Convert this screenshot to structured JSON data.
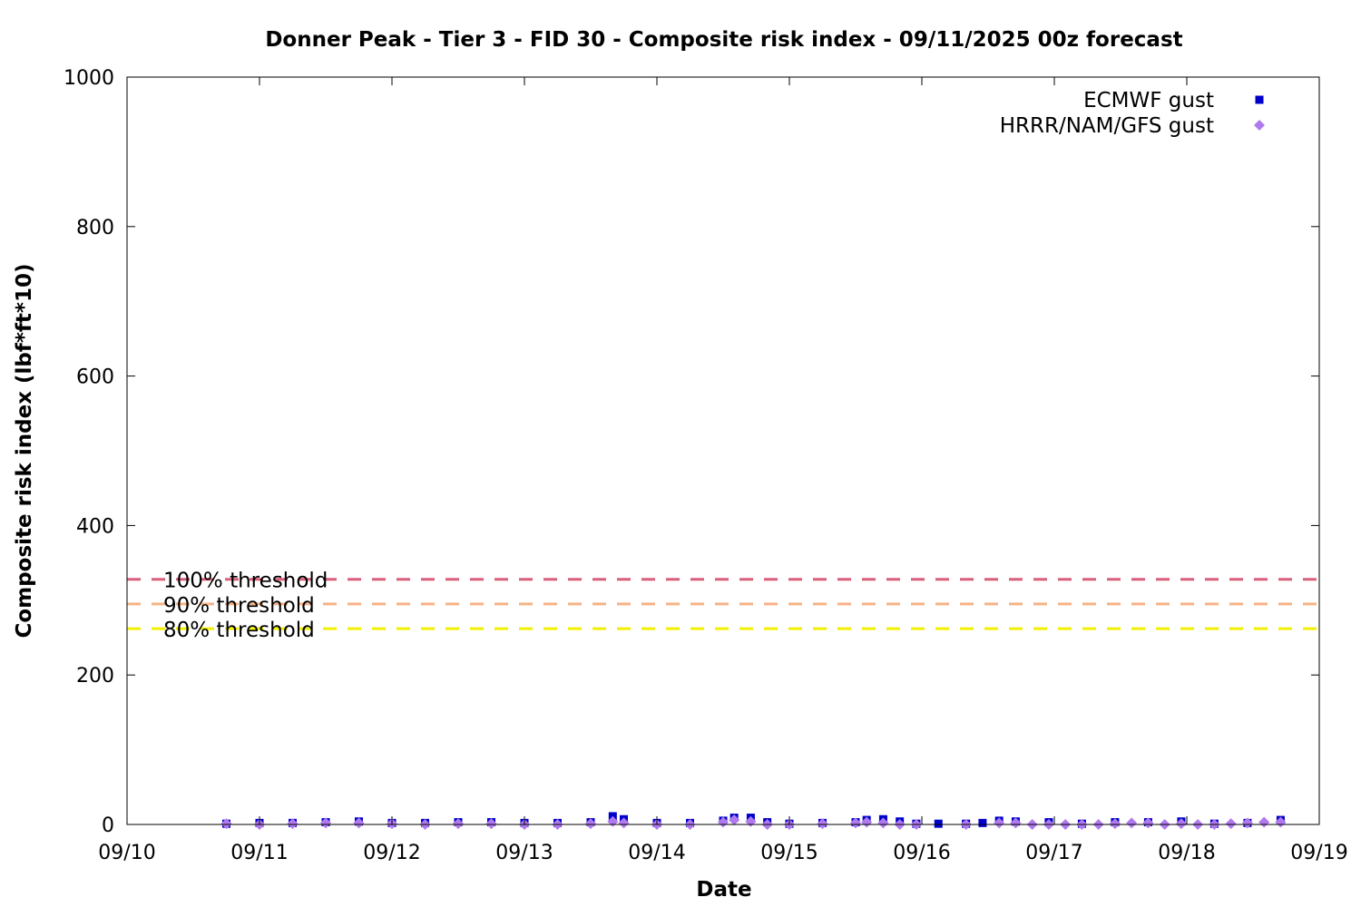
{
  "chart_data": {
    "type": "scatter",
    "title": "Donner Peak - Tier 3 - FID 30 - Composite risk index - 09/11/2025 00z forecast",
    "xlabel": "Date",
    "ylabel": "Composite risk index (lbf*ft*10)",
    "xlim": [
      "09/10",
      "09/19"
    ],
    "ylim": [
      0,
      1000
    ],
    "x_ticks": [
      "09/10",
      "09/11",
      "09/12",
      "09/13",
      "09/14",
      "09/15",
      "09/16",
      "09/17",
      "09/18",
      "09/19"
    ],
    "y_ticks": [
      0,
      200,
      400,
      600,
      800,
      1000
    ],
    "grid": false,
    "legend_position": "top-right",
    "thresholds": [
      {
        "label": "100% threshold",
        "value": 328,
        "color": "#d95f7a"
      },
      {
        "label": "90% threshold",
        "value": 295,
        "color": "#f5b386"
      },
      {
        "label": "80% threshold",
        "value": 262,
        "color": "#f0f000"
      }
    ],
    "series": [
      {
        "name": "ECMWF gust",
        "marker": "square",
        "color": "#0000cc",
        "points": [
          [
            "09/10 18:00",
            1
          ],
          [
            "09/11 00:00",
            2
          ],
          [
            "09/11 06:00",
            2
          ],
          [
            "09/11 12:00",
            3
          ],
          [
            "09/11 18:00",
            4
          ],
          [
            "09/12 00:00",
            2
          ],
          [
            "09/12 06:00",
            2
          ],
          [
            "09/12 12:00",
            3
          ],
          [
            "09/12 18:00",
            3
          ],
          [
            "09/13 00:00",
            2
          ],
          [
            "09/13 06:00",
            2
          ],
          [
            "09/13 12:00",
            3
          ],
          [
            "09/13 16:00",
            11
          ],
          [
            "09/13 18:00",
            7
          ],
          [
            "09/14 00:00",
            2
          ],
          [
            "09/14 06:00",
            2
          ],
          [
            "09/14 12:00",
            5
          ],
          [
            "09/14 14:00",
            9
          ],
          [
            "09/14 17:00",
            9
          ],
          [
            "09/14 20:00",
            3
          ],
          [
            "09/15 00:00",
            1
          ],
          [
            "09/15 06:00",
            2
          ],
          [
            "09/15 12:00",
            3
          ],
          [
            "09/15 14:00",
            6
          ],
          [
            "09/15 17:00",
            7
          ],
          [
            "09/15 20:00",
            4
          ],
          [
            "09/15 23:00",
            1
          ],
          [
            "09/16 03:00",
            1
          ],
          [
            "09/16 08:00",
            1
          ],
          [
            "09/16 11:00",
            2
          ],
          [
            "09/16 14:00",
            5
          ],
          [
            "09/16 17:00",
            4
          ],
          [
            "09/16 23:00",
            3
          ],
          [
            "09/17 05:00",
            1
          ],
          [
            "09/17 11:00",
            3
          ],
          [
            "09/17 17:00",
            3
          ],
          [
            "09/17 23:00",
            4
          ],
          [
            "09/18 05:00",
            1
          ],
          [
            "09/18 11:00",
            2
          ],
          [
            "09/18 17:00",
            6
          ]
        ]
      },
      {
        "name": "HRRR/NAM/GFS gust",
        "marker": "diamond",
        "color": "#b07aee",
        "points": [
          [
            "09/10 18:00",
            1
          ],
          [
            "09/11 00:00",
            0
          ],
          [
            "09/11 06:00",
            1
          ],
          [
            "09/11 12:00",
            2
          ],
          [
            "09/11 18:00",
            2
          ],
          [
            "09/12 00:00",
            1
          ],
          [
            "09/12 06:00",
            0
          ],
          [
            "09/12 12:00",
            1
          ],
          [
            "09/12 18:00",
            1
          ],
          [
            "09/13 00:00",
            0
          ],
          [
            "09/13 06:00",
            0
          ],
          [
            "09/13 12:00",
            1
          ],
          [
            "09/13 16:00",
            4
          ],
          [
            "09/13 18:00",
            2
          ],
          [
            "09/14 00:00",
            0
          ],
          [
            "09/14 06:00",
            0
          ],
          [
            "09/14 12:00",
            3
          ],
          [
            "09/14 14:00",
            6
          ],
          [
            "09/14 17:00",
            4
          ],
          [
            "09/14 20:00",
            0
          ],
          [
            "09/15 00:00",
            0
          ],
          [
            "09/15 06:00",
            1
          ],
          [
            "09/15 12:00",
            2
          ],
          [
            "09/15 14:00",
            3
          ],
          [
            "09/15 17:00",
            2
          ],
          [
            "09/15 20:00",
            0
          ],
          [
            "09/15 23:00",
            0
          ],
          [
            "09/16 08:00",
            0
          ],
          [
            "09/16 14:00",
            2
          ],
          [
            "09/16 17:00",
            2
          ],
          [
            "09/16 20:00",
            0
          ],
          [
            "09/16 23:00",
            0
          ],
          [
            "09/17 02:00",
            0
          ],
          [
            "09/17 05:00",
            0
          ],
          [
            "09/17 08:00",
            0
          ],
          [
            "09/17 11:00",
            1
          ],
          [
            "09/17 14:00",
            2
          ],
          [
            "09/17 17:00",
            2
          ],
          [
            "09/17 20:00",
            0
          ],
          [
            "09/17 23:00",
            1
          ],
          [
            "09/18 02:00",
            0
          ],
          [
            "09/18 05:00",
            0
          ],
          [
            "09/18 08:00",
            1
          ],
          [
            "09/18 11:00",
            2
          ],
          [
            "09/18 14:00",
            3
          ],
          [
            "09/18 17:00",
            3
          ]
        ]
      }
    ]
  }
}
